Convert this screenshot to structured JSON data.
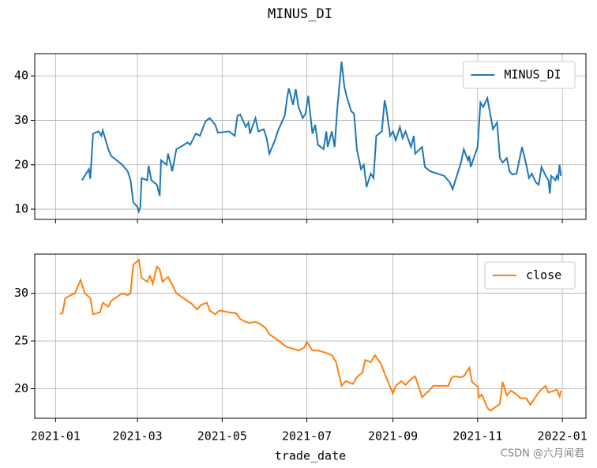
{
  "chart_data": {
    "type": "line",
    "title": "MINUS_DI",
    "xlabel": "trade_date",
    "watermark": "CSDN @六月闻君",
    "xlim": [
      "2020-12-17",
      "2022-01-18"
    ],
    "xticks": [
      "2021-01",
      "2021-03",
      "2021-05",
      "2021-07",
      "2021-09",
      "2021-11",
      "2022-01"
    ],
    "grid": true,
    "panels": [
      {
        "x": [
          "2021-01-20",
          "2021-01-22",
          "2021-01-25",
          "2021-01-26",
          "2021-01-28",
          "2021-02-01",
          "2021-02-03",
          "2021-02-04",
          "2021-02-08",
          "2021-02-10",
          "2021-02-18",
          "2021-02-22",
          "2021-02-24",
          "2021-02-26",
          "2021-03-01",
          "2021-03-02",
          "2021-03-03",
          "2021-03-04",
          "2021-03-08",
          "2021-03-09",
          "2021-03-11",
          "2021-03-15",
          "2021-03-17",
          "2021-03-18",
          "2021-03-22",
          "2021-03-23",
          "2021-03-25",
          "2021-03-26",
          "2021-03-29",
          "2021-04-01",
          "2021-04-06",
          "2021-04-08",
          "2021-04-12",
          "2021-04-15",
          "2021-04-19",
          "2021-04-22",
          "2021-04-26",
          "2021-04-28",
          "2021-05-06",
          "2021-05-10",
          "2021-05-12",
          "2021-05-14",
          "2021-05-18",
          "2021-05-20",
          "2021-05-21",
          "2021-05-25",
          "2021-05-27",
          "2021-05-31",
          "2021-06-02",
          "2021-06-04",
          "2021-06-08",
          "2021-06-10",
          "2021-06-15",
          "2021-06-17",
          "2021-06-18",
          "2021-06-21",
          "2021-06-23",
          "2021-06-25",
          "2021-06-28",
          "2021-06-30",
          "2021-07-02",
          "2021-07-05",
          "2021-07-07",
          "2021-07-09",
          "2021-07-13",
          "2021-07-15",
          "2021-07-16",
          "2021-07-19",
          "2021-07-21",
          "2021-07-23",
          "2021-07-26",
          "2021-07-28",
          "2021-07-30",
          "2021-08-02",
          "2021-08-04",
          "2021-08-06",
          "2021-08-09",
          "2021-08-11",
          "2021-08-13",
          "2021-08-16",
          "2021-08-18",
          "2021-08-20",
          "2021-08-24",
          "2021-08-26",
          "2021-08-27",
          "2021-08-30",
          "2021-09-01",
          "2021-09-03",
          "2021-09-06",
          "2021-09-08",
          "2021-09-10",
          "2021-09-14",
          "2021-09-16",
          "2021-09-17",
          "2021-09-22",
          "2021-09-24",
          "2021-09-28",
          "2021-10-08",
          "2021-10-12",
          "2021-10-14",
          "2021-10-18",
          "2021-10-20",
          "2021-10-22",
          "2021-10-25",
          "2021-10-26",
          "2021-10-27",
          "2021-11-01",
          "2021-11-02",
          "2021-11-03",
          "2021-11-05",
          "2021-11-08",
          "2021-11-10",
          "2021-11-12",
          "2021-11-15",
          "2021-11-17",
          "2021-11-19",
          "2021-11-22",
          "2021-11-24",
          "2021-11-26",
          "2021-11-29",
          "2021-12-01",
          "2021-12-03",
          "2021-12-06",
          "2021-12-08",
          "2021-12-10",
          "2021-12-13",
          "2021-12-15",
          "2021-12-17",
          "2021-12-20",
          "2021-12-22",
          "2021-12-23",
          "2021-12-24",
          "2021-12-27",
          "2021-12-28",
          "2021-12-29",
          "2021-12-30",
          "2021-12-31"
        ],
        "series": [
          {
            "name": "MINUS_DI",
            "color": "#1f77b4",
            "values": [
              16.5,
              17.5,
              19.0,
              16.8,
              27.0,
              27.5,
              26.5,
              27.7,
              23.5,
              22.0,
              20.0,
              18.5,
              16.5,
              11.5,
              10.5,
              9.5,
              10.5,
              17.0,
              16.5,
              19.8,
              16.5,
              15.5,
              13.0,
              21.0,
              20.0,
              22.5,
              20.0,
              18.5,
              23.5,
              24.0,
              25.0,
              24.5,
              27.0,
              26.5,
              29.8,
              30.5,
              29.0,
              27.2,
              27.5,
              26.5,
              31.0,
              31.3,
              28.5,
              29.5,
              27.0,
              30.5,
              27.5,
              28.0,
              26.0,
              22.5,
              25.5,
              27.5,
              31.0,
              35.5,
              37.2,
              33.5,
              37.0,
              33.0,
              30.5,
              31.5,
              35.5,
              27.0,
              29.0,
              24.5,
              23.5,
              27.5,
              24.0,
              27.5,
              24.0,
              33.0,
              43.2,
              37.5,
              35.0,
              32.0,
              31.5,
              23.5,
              19.0,
              20.0,
              15.0,
              18.0,
              17.0,
              26.5,
              27.5,
              34.5,
              33.0,
              26.5,
              27.5,
              25.5,
              28.5,
              26.0,
              27.5,
              24.0,
              26.5,
              22.5,
              24.0,
              19.5,
              18.5,
              17.5,
              16.0,
              14.5,
              18.5,
              20.5,
              23.5,
              21.0,
              22.0,
              19.5,
              24.0,
              29.0,
              34.0,
              33.0,
              35.0,
              31.5,
              28.0,
              29.5,
              21.5,
              20.5,
              21.5,
              18.5,
              17.8,
              18.0,
              21.0,
              24.0,
              20.0,
              17.0,
              18.0,
              16.0,
              15.5,
              19.5,
              17.5,
              16.5,
              13.5,
              17.5,
              16.5,
              17.5,
              16.8,
              20.0,
              17.5
            ]
          }
        ],
        "ylim": [
          7.7,
          45
        ],
        "yticks": [
          10,
          20,
          30,
          40
        ],
        "legend": "upper right"
      },
      {
        "x": [
          "2021-01-04",
          "2021-01-06",
          "2021-01-08",
          "2021-01-12",
          "2021-01-15",
          "2021-01-19",
          "2021-01-22",
          "2021-01-26",
          "2021-01-28",
          "2021-02-02",
          "2021-02-04",
          "2021-02-08",
          "2021-02-10",
          "2021-02-18",
          "2021-02-22",
          "2021-02-24",
          "2021-02-26",
          "2021-03-02",
          "2021-03-04",
          "2021-03-08",
          "2021-03-10",
          "2021-03-12",
          "2021-03-15",
          "2021-03-17",
          "2021-03-19",
          "2021-03-23",
          "2021-03-25",
          "2021-03-29",
          "2021-04-01",
          "2021-04-06",
          "2021-04-09",
          "2021-04-13",
          "2021-04-16",
          "2021-04-20",
          "2021-04-22",
          "2021-04-26",
          "2021-04-29",
          "2021-05-06",
          "2021-05-11",
          "2021-05-14",
          "2021-05-18",
          "2021-05-21",
          "2021-05-25",
          "2021-05-28",
          "2021-06-01",
          "2021-06-04",
          "2021-06-08",
          "2021-06-11",
          "2021-06-16",
          "2021-06-21",
          "2021-06-25",
          "2021-06-29",
          "2021-07-01",
          "2021-07-05",
          "2021-07-09",
          "2021-07-14",
          "2021-07-19",
          "2021-07-22",
          "2021-07-26",
          "2021-07-29",
          "2021-08-03",
          "2021-08-06",
          "2021-08-10",
          "2021-08-12",
          "2021-08-16",
          "2021-08-19",
          "2021-08-23",
          "2021-08-26",
          "2021-08-30",
          "2021-09-01",
          "2021-09-03",
          "2021-09-07",
          "2021-09-10",
          "2021-09-14",
          "2021-09-17",
          "2021-09-22",
          "2021-09-27",
          "2021-09-30",
          "2021-10-11",
          "2021-10-13",
          "2021-10-15",
          "2021-10-20",
          "2021-10-22",
          "2021-10-26",
          "2021-10-28",
          "2021-11-01",
          "2021-11-02",
          "2021-11-04",
          "2021-11-08",
          "2021-11-10",
          "2021-11-15",
          "2021-11-17",
          "2021-11-19",
          "2021-11-22",
          "2021-11-25",
          "2021-11-29",
          "2021-12-02",
          "2021-12-06",
          "2021-12-09",
          "2021-12-13",
          "2021-12-16",
          "2021-12-20",
          "2021-12-22",
          "2021-12-24",
          "2021-12-28",
          "2021-12-30",
          "2021-12-31"
        ],
        "series": [
          {
            "name": "close",
            "color": "#ff7f0e",
            "values": [
              27.85,
              27.9,
              29.5,
              29.8,
              30.0,
              31.4,
              30.0,
              29.5,
              27.8,
              28.0,
              29.0,
              28.6,
              29.2,
              30.0,
              29.8,
              30.0,
              33.0,
              33.5,
              31.6,
              31.2,
              31.8,
              31.0,
              32.8,
              32.5,
              31.2,
              31.7,
              31.2,
              30.0,
              29.7,
              29.2,
              28.9,
              28.3,
              28.8,
              29.0,
              28.2,
              27.8,
              28.2,
              28.0,
              27.9,
              27.3,
              27.0,
              26.9,
              27.0,
              26.8,
              26.4,
              25.7,
              25.3,
              25.0,
              24.4,
              24.2,
              24.0,
              24.3,
              24.9,
              24.0,
              24.0,
              23.8,
              23.5,
              22.8,
              20.3,
              20.8,
              20.5,
              21.2,
              21.7,
              23.0,
              22.8,
              23.5,
              22.7,
              21.6,
              20.2,
              19.5,
              20.3,
              20.8,
              20.4,
              21.0,
              21.3,
              19.1,
              19.8,
              20.3,
              20.3,
              21.1,
              21.3,
              21.2,
              21.3,
              22.2,
              20.7,
              20.2,
              19.1,
              19.4,
              18.0,
              17.7,
              18.2,
              18.4,
              20.7,
              19.3,
              19.8,
              19.4,
              19.0,
              19.0,
              18.3,
              19.2,
              19.8,
              20.3,
              19.6,
              19.7,
              19.9,
              19.2,
              19.8
            ]
          }
        ],
        "ylim": [
          16.9,
          34.1
        ],
        "yticks": [
          20,
          25,
          30
        ],
        "legend": "upper right"
      }
    ]
  }
}
